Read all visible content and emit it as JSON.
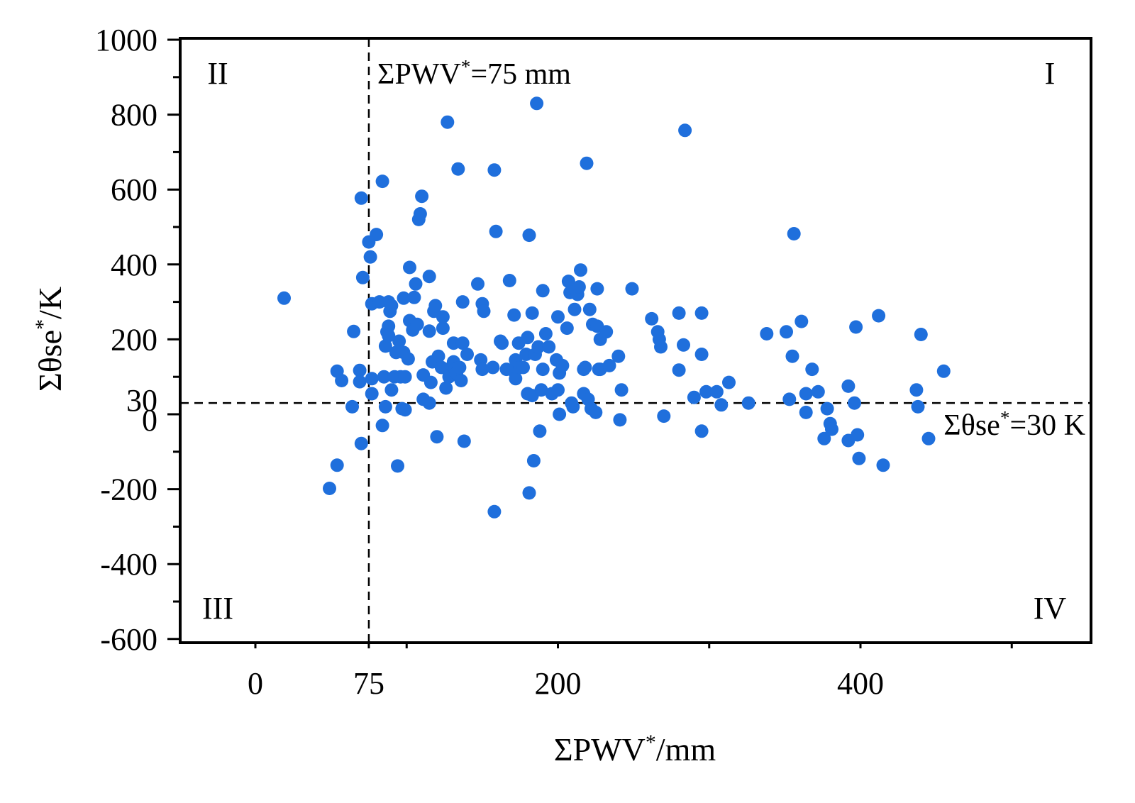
{
  "chart_data": {
    "type": "scatter",
    "xlabel": "ΣPWV*/mm",
    "ylabel": "Σθse*/K",
    "xlim": [
      -30,
      550
    ],
    "ylim": [
      -600,
      1000
    ],
    "x_ticks": [
      0,
      75,
      200,
      400
    ],
    "y_ticks": [
      -600,
      -400,
      -200,
      0,
      30,
      200,
      400,
      600,
      800,
      1000
    ],
    "grid": false,
    "marker_color": "#1f6fdc",
    "reference_lines": {
      "vertical": {
        "x": 75,
        "label": "ΣPWV*=75 mm"
      },
      "horizontal": {
        "y": 30,
        "label": "Σθse*=30 K"
      }
    },
    "quadrant_labels": {
      "top_left": "II",
      "top_right": "I",
      "bottom_left": "III",
      "bottom_right": "IV"
    },
    "points": [
      [
        19,
        310
      ],
      [
        49,
        -198
      ],
      [
        54,
        115
      ],
      [
        54,
        -136
      ],
      [
        57,
        90
      ],
      [
        64,
        20
      ],
      [
        65,
        221
      ],
      [
        69,
        117
      ],
      [
        69,
        87
      ],
      [
        70,
        -78
      ],
      [
        70,
        577
      ],
      [
        71,
        365
      ],
      [
        75,
        460
      ],
      [
        76,
        420
      ],
      [
        77,
        295
      ],
      [
        77,
        95
      ],
      [
        77,
        55
      ],
      [
        80,
        480
      ],
      [
        82,
        300
      ],
      [
        84,
        -30
      ],
      [
        84,
        622
      ],
      [
        85,
        100
      ],
      [
        86,
        20
      ],
      [
        86,
        182
      ],
      [
        87,
        220
      ],
      [
        88,
        300
      ],
      [
        88,
        235
      ],
      [
        88,
        210
      ],
      [
        89,
        275
      ],
      [
        90,
        290
      ],
      [
        90,
        65
      ],
      [
        92,
        100
      ],
      [
        93,
        165
      ],
      [
        94,
        -138
      ],
      [
        95,
        195
      ],
      [
        96,
        100
      ],
      [
        97,
        15
      ],
      [
        98,
        165
      ],
      [
        98,
        310
      ],
      [
        99,
        12
      ],
      [
        99,
        100
      ],
      [
        101,
        148
      ],
      [
        102,
        392
      ],
      [
        102,
        250
      ],
      [
        104,
        225
      ],
      [
        105,
        312
      ],
      [
        106,
        348
      ],
      [
        107,
        240
      ],
      [
        108,
        520
      ],
      [
        109,
        535
      ],
      [
        110,
        582
      ],
      [
        111,
        40
      ],
      [
        111,
        105
      ],
      [
        115,
        30
      ],
      [
        115,
        222
      ],
      [
        115,
        368
      ],
      [
        116,
        85
      ],
      [
        117,
        140
      ],
      [
        118,
        275
      ],
      [
        119,
        290
      ],
      [
        120,
        -60
      ],
      [
        121,
        155
      ],
      [
        123,
        125
      ],
      [
        124,
        230
      ],
      [
        124,
        260
      ],
      [
        126,
        70
      ],
      [
        127,
        120
      ],
      [
        127,
        780
      ],
      [
        128,
        100
      ],
      [
        129,
        105
      ],
      [
        131,
        140
      ],
      [
        131,
        190
      ],
      [
        132,
        120
      ],
      [
        133,
        110
      ],
      [
        134,
        655
      ],
      [
        135,
        125
      ],
      [
        136,
        90
      ],
      [
        137,
        300
      ],
      [
        137,
        190
      ],
      [
        138,
        -72
      ],
      [
        140,
        160
      ],
      [
        147,
        348
      ],
      [
        149,
        145
      ],
      [
        150,
        295
      ],
      [
        150,
        120
      ],
      [
        151,
        275
      ],
      [
        157,
        125
      ],
      [
        158,
        -260
      ],
      [
        158,
        652
      ],
      [
        159,
        488
      ],
      [
        162,
        195
      ],
      [
        163,
        190
      ],
      [
        166,
        120
      ],
      [
        168,
        357
      ],
      [
        170,
        118
      ],
      [
        171,
        265
      ],
      [
        172,
        95
      ],
      [
        172,
        145
      ],
      [
        174,
        190
      ],
      [
        175,
        125
      ],
      [
        177,
        125
      ],
      [
        179,
        160
      ],
      [
        180,
        55
      ],
      [
        180,
        205
      ],
      [
        181,
        -210
      ],
      [
        181,
        478
      ],
      [
        183,
        270
      ],
      [
        183,
        50
      ],
      [
        184,
        -124
      ],
      [
        185,
        160
      ],
      [
        186,
        830
      ],
      [
        187,
        180
      ],
      [
        188,
        -45
      ],
      [
        189,
        65
      ],
      [
        190,
        330
      ],
      [
        190,
        120
      ],
      [
        192,
        215
      ],
      [
        194,
        180
      ],
      [
        196,
        55
      ],
      [
        199,
        145
      ],
      [
        200,
        260
      ],
      [
        200,
        65
      ],
      [
        201,
        110
      ],
      [
        201,
        0
      ],
      [
        203,
        130
      ],
      [
        206,
        230
      ],
      [
        207,
        355
      ],
      [
        208,
        325
      ],
      [
        209,
        30
      ],
      [
        210,
        20
      ],
      [
        211,
        280
      ],
      [
        213,
        320
      ],
      [
        214,
        340
      ],
      [
        215,
        385
      ],
      [
        217,
        120
      ],
      [
        217,
        55
      ],
      [
        218,
        125
      ],
      [
        219,
        670
      ],
      [
        220,
        40
      ],
      [
        221,
        280
      ],
      [
        222,
        15
      ],
      [
        223,
        240
      ],
      [
        225,
        5
      ],
      [
        226,
        235
      ],
      [
        226,
        335
      ],
      [
        227,
        120
      ],
      [
        228,
        200
      ],
      [
        228,
        120
      ],
      [
        232,
        220
      ],
      [
        234,
        130
      ],
      [
        240,
        155
      ],
      [
        241,
        -15
      ],
      [
        242,
        65
      ],
      [
        249,
        335
      ],
      [
        262,
        255
      ],
      [
        266,
        220
      ],
      [
        267,
        200
      ],
      [
        268,
        180
      ],
      [
        270,
        -5
      ],
      [
        280,
        118
      ],
      [
        280,
        270
      ],
      [
        283,
        185
      ],
      [
        284,
        758
      ],
      [
        290,
        45
      ],
      [
        295,
        -45
      ],
      [
        295,
        270
      ],
      [
        295,
        160
      ],
      [
        298,
        60
      ],
      [
        305,
        60
      ],
      [
        308,
        25
      ],
      [
        313,
        85
      ],
      [
        326,
        30
      ],
      [
        338,
        215
      ],
      [
        351,
        220
      ],
      [
        353,
        40
      ],
      [
        355,
        155
      ],
      [
        356,
        482
      ],
      [
        361,
        248
      ],
      [
        364,
        55
      ],
      [
        364,
        5
      ],
      [
        368,
        120
      ],
      [
        372,
        60
      ],
      [
        376,
        -65
      ],
      [
        378,
        15
      ],
      [
        380,
        -25
      ],
      [
        381,
        -40
      ],
      [
        392,
        -70
      ],
      [
        392,
        75
      ],
      [
        396,
        30
      ],
      [
        397,
        233
      ],
      [
        398,
        -55
      ],
      [
        399,
        -118
      ],
      [
        412,
        263
      ],
      [
        415,
        -136
      ],
      [
        437,
        65
      ],
      [
        438,
        20
      ],
      [
        440,
        213
      ],
      [
        445,
        -65
      ],
      [
        455,
        115
      ]
    ]
  }
}
